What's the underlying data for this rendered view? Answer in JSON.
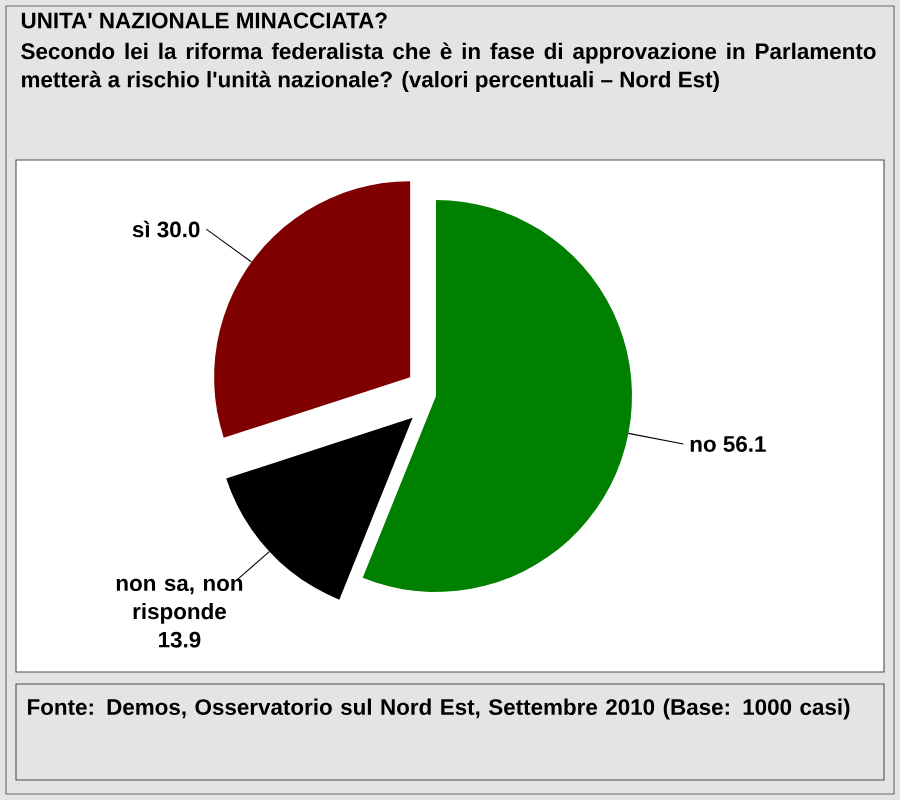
{
  "chart_data": {
    "type": "pie",
    "title": "UNITA' NAZIONALE MINACCIATA?",
    "subtitle": "Secondo lei la riforma federalista che è in fase di approvazione in Parlamento metterà a rischio l'unità nazionale? (valori percentuali – Nord Est)",
    "categories": [
      "no",
      "non sa, non risponde",
      "sì"
    ],
    "values": [
      56.1,
      13.9,
      30.0
    ],
    "colors": [
      "#008000",
      "#000000",
      "#800000"
    ],
    "value_labels": [
      "56.1",
      "13.9",
      "30.0"
    ],
    "annotations": [
      "Fonte: Demos, Osservatorio sul Nord Est, Settembre 2010 (Base: 1000 casi)"
    ]
  }
}
